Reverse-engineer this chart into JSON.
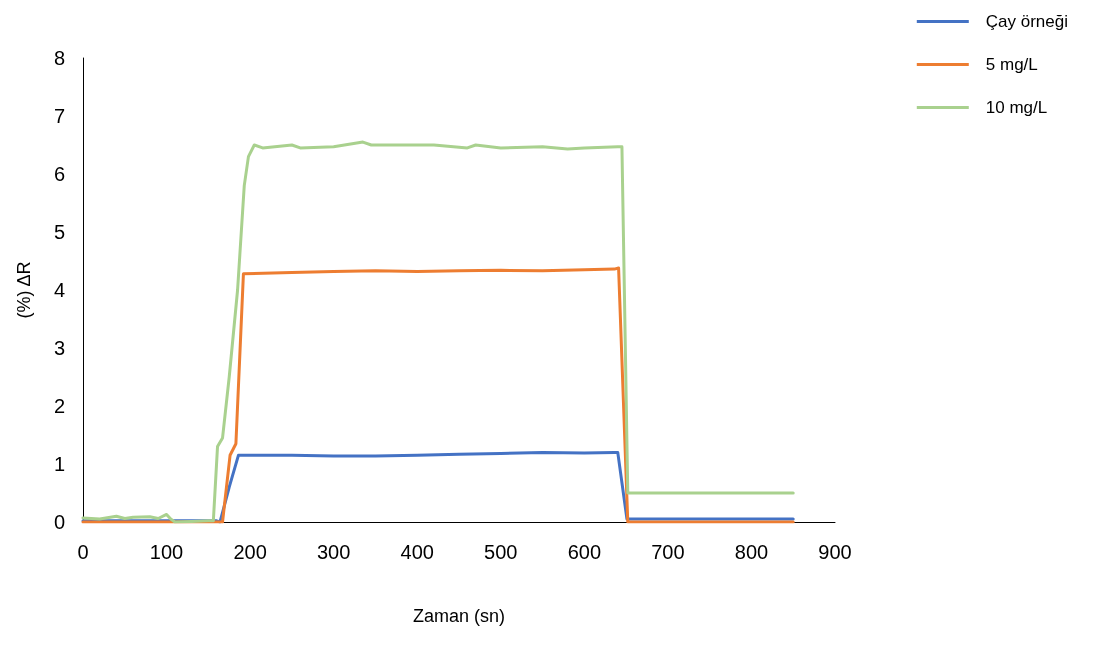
{
  "chart_data": {
    "type": "line",
    "xlabel": "Zaman (sn)",
    "ylabel": "(%) ΔR",
    "xlim": [
      0,
      900
    ],
    "xticks": [
      0,
      100,
      200,
      300,
      400,
      500,
      600,
      700,
      800,
      900
    ],
    "ylim": [
      0,
      8
    ],
    "yticks": [
      0,
      1,
      2,
      3,
      4,
      5,
      6,
      7,
      8
    ],
    "grid": false,
    "legend": "top right",
    "marker": "none",
    "line_style": "solid",
    "series": [
      {
        "name": "Çay örneği",
        "color": "#4472c4",
        "x": [
          0,
          50,
          100,
          150,
          160,
          164,
          175,
          186,
          200,
          250,
          300,
          350,
          400,
          450,
          500,
          550,
          600,
          636,
          640,
          651,
          700,
          800,
          850
        ],
        "values": [
          0.02,
          0.02,
          0.02,
          0.02,
          0.02,
          0,
          0.6,
          1.15,
          1.15,
          1.15,
          1.14,
          1.14,
          1.15,
          1.17,
          1.18,
          1.2,
          1.19,
          1.2,
          1.2,
          0.05,
          0.05,
          0.05,
          0.05
        ]
      },
      {
        "name": "5 mg/L",
        "color": "#ed7d31",
        "x": [
          0,
          50,
          100,
          150,
          167,
          176,
          183,
          192,
          250,
          300,
          350,
          400,
          450,
          500,
          550,
          600,
          636,
          641,
          652,
          700,
          800,
          850
        ],
        "values": [
          0,
          0,
          0,
          0,
          0,
          1.15,
          1.35,
          4.28,
          4.3,
          4.32,
          4.33,
          4.32,
          4.33,
          4.34,
          4.33,
          4.35,
          4.36,
          4.38,
          0,
          0,
          0,
          0
        ]
      },
      {
        "name": "10 mg/L",
        "color": "#a9d18e",
        "x": [
          0,
          20,
          40,
          50,
          60,
          80,
          90,
          100,
          105,
          110,
          130,
          150,
          156,
          161,
          167,
          175,
          185,
          193,
          198,
          205,
          215,
          250,
          260,
          300,
          335,
          345,
          380,
          420,
          460,
          470,
          500,
          550,
          580,
          600,
          640,
          645,
          652,
          658,
          700,
          800,
          850
        ],
        "values": [
          0.07,
          0.05,
          0.1,
          0.06,
          0.08,
          0.09,
          0.06,
          0.13,
          0.05,
          0,
          0.01,
          0.02,
          0.02,
          1.3,
          1.45,
          2.5,
          4.0,
          5.8,
          6.3,
          6.5,
          6.45,
          6.5,
          6.45,
          6.47,
          6.55,
          6.5,
          6.5,
          6.5,
          6.45,
          6.5,
          6.45,
          6.47,
          6.43,
          6.45,
          6.47,
          6.47,
          0.5,
          0.5,
          0.5,
          0.5,
          0.5
        ]
      }
    ]
  }
}
